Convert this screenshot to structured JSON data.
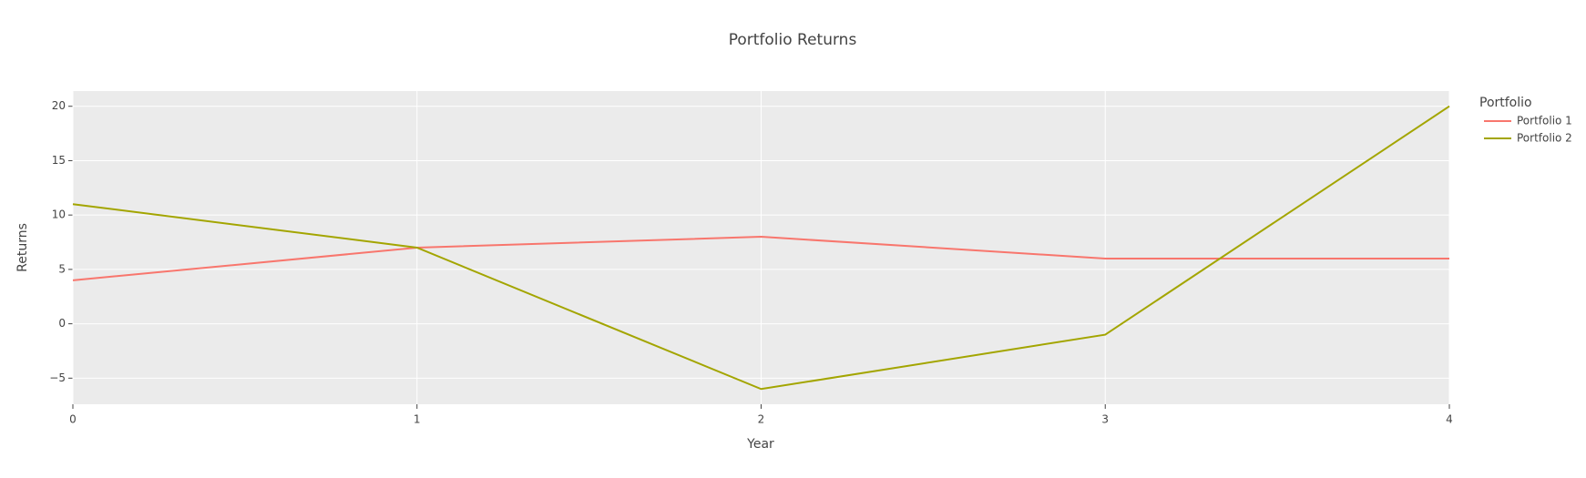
{
  "chart_data": {
    "type": "line",
    "title": "Portfolio Returns",
    "x_label": "Year",
    "y_label": "Returns",
    "legend_title": "Portfolio",
    "x": [
      0,
      1,
      2,
      3,
      4
    ],
    "series": [
      {
        "name": "Portfolio 1",
        "color": "#F8766D",
        "values": [
          4,
          7,
          8,
          6,
          6
        ]
      },
      {
        "name": "Portfolio 2",
        "color": "#A3A500",
        "values": [
          11,
          7,
          -6,
          -1,
          20
        ]
      }
    ],
    "xlim": [
      0,
      4
    ],
    "xticks": [
      0,
      1,
      2,
      3,
      4
    ],
    "ylim": [
      -7.4,
      21.4
    ],
    "yticks": [
      {
        "value": -5,
        "label": "−5"
      },
      0,
      5,
      10,
      15,
      20
    ],
    "grid": true,
    "legend": "right"
  }
}
